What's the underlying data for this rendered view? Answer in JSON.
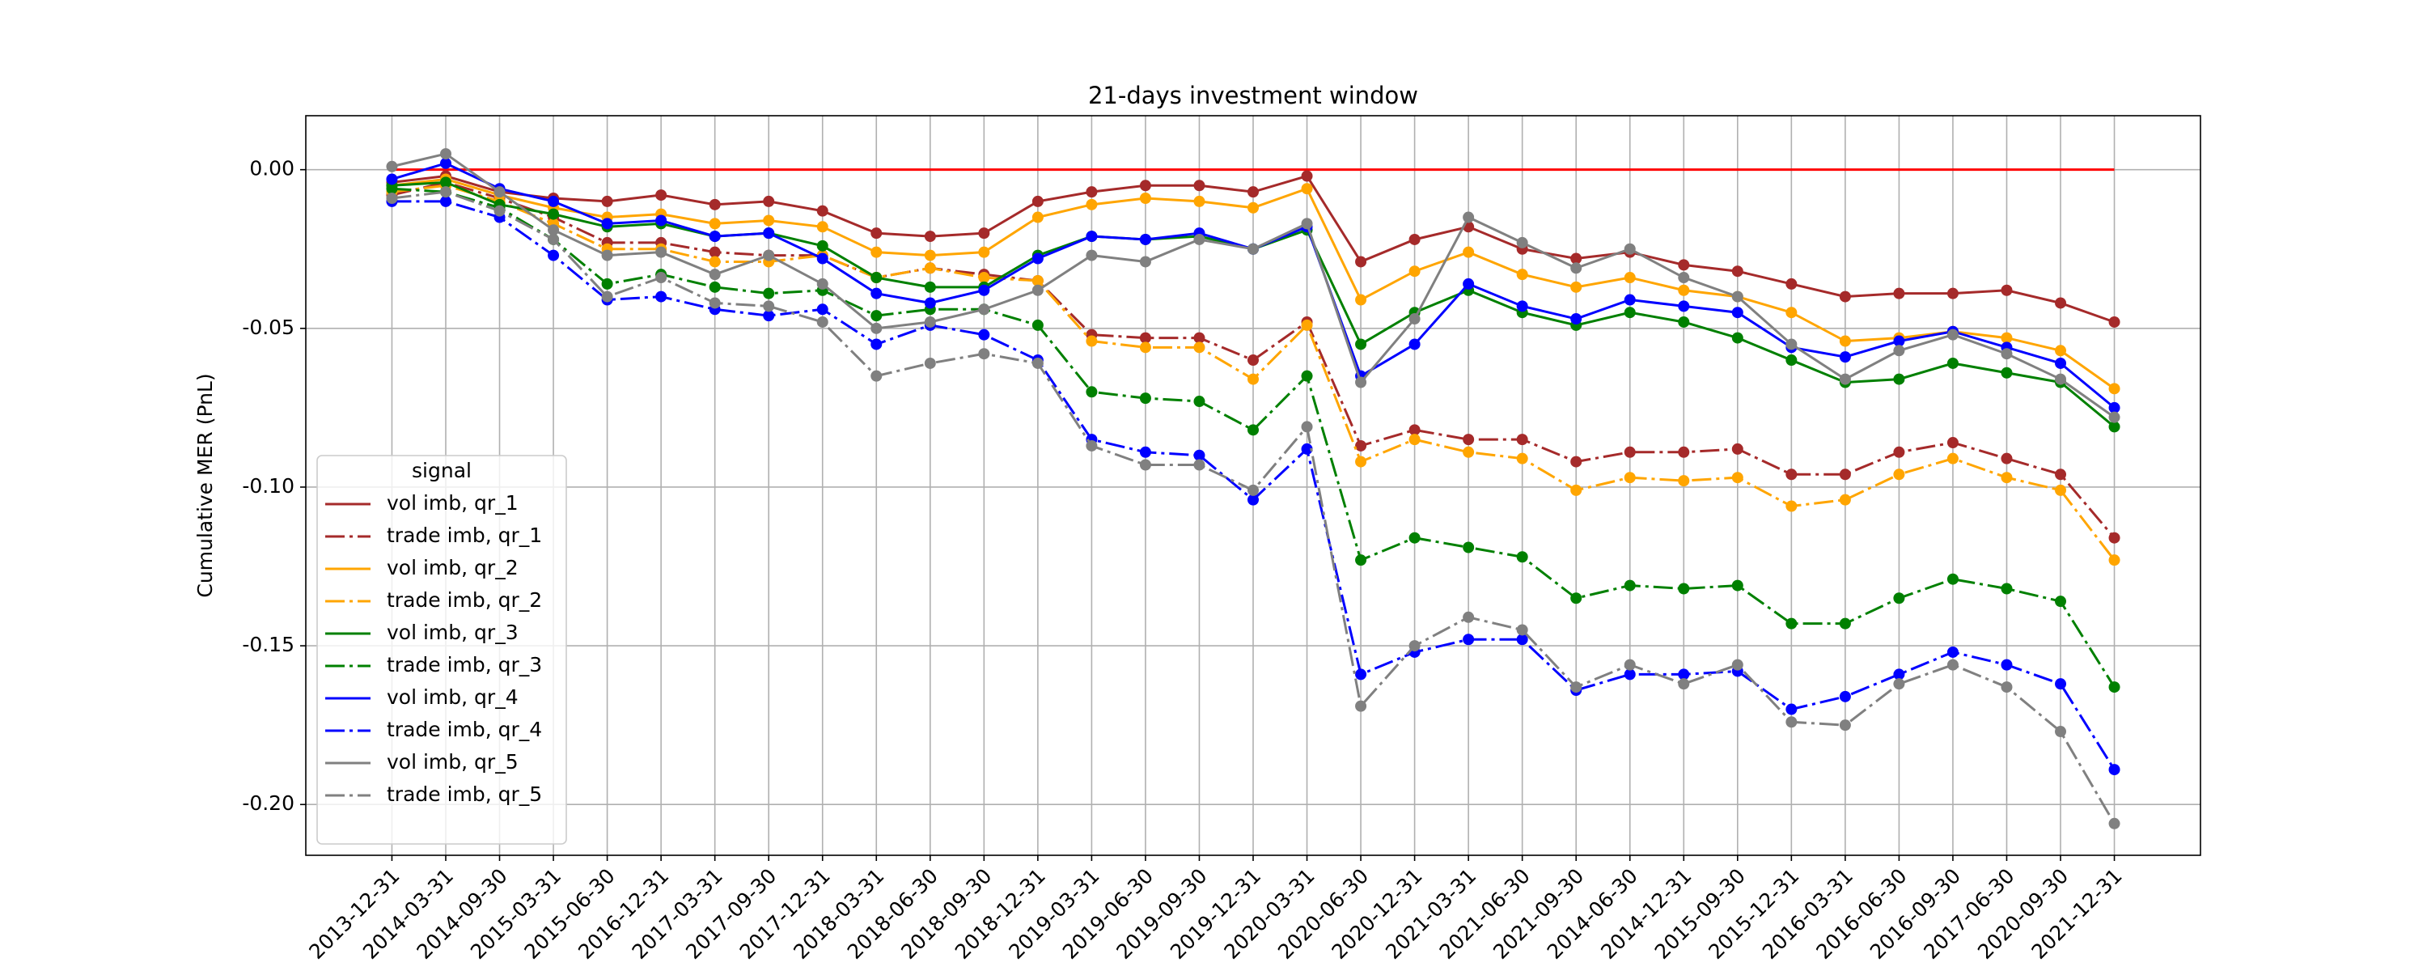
{
  "chart_data": {
    "type": "line",
    "title": "21-days investment window",
    "ylabel": "Cumulative MER (PnL)",
    "categories": [
      "2013-12-31",
      "2014-03-31",
      "2014-09-30",
      "2015-03-31",
      "2015-06-30",
      "2016-12-31",
      "2017-03-31",
      "2017-09-30",
      "2017-12-31",
      "2018-03-31",
      "2018-06-30",
      "2018-09-30",
      "2018-12-31",
      "2019-03-31",
      "2019-06-30",
      "2019-09-30",
      "2019-12-31",
      "2020-03-31",
      "2020-06-30",
      "2020-12-31",
      "2021-03-31",
      "2021-06-30",
      "2021-09-30",
      "2014-06-30",
      "2014-12-31",
      "2015-09-30",
      "2015-12-31",
      "2016-03-31",
      "2016-06-30",
      "2016-09-30",
      "2017-06-30",
      "2020-09-30",
      "2021-12-31"
    ],
    "ylim": [
      -0.216,
      0.017
    ],
    "yticks": [
      {
        "value": 0,
        "label": "0.00"
      },
      {
        "value": -0.05,
        "label": "-0.05"
      },
      {
        "value": -0.1,
        "label": "-0.10"
      },
      {
        "value": -0.15,
        "label": "-0.15"
      },
      {
        "value": -0.2,
        "label": "-0.20"
      }
    ],
    "grid": true,
    "hline": {
      "value": 0,
      "color": "#ff0000"
    },
    "legend_title": "signal",
    "legend_loc": "lower left",
    "series": [
      {
        "name": "vol imb, qr_1",
        "color": "#a52a2a",
        "linestyle": "solid",
        "values": [
          -0.004,
          -0.002,
          -0.007,
          -0.009,
          -0.01,
          -0.008,
          -0.011,
          -0.01,
          -0.013,
          -0.02,
          -0.021,
          -0.02,
          -0.01,
          -0.007,
          -0.005,
          -0.005,
          -0.007,
          -0.002,
          -0.029,
          -0.022,
          -0.018,
          -0.025,
          -0.028,
          -0.026,
          -0.03,
          -0.032,
          -0.036,
          -0.04,
          -0.039,
          -0.039,
          -0.038,
          -0.042,
          -0.048
        ]
      },
      {
        "name": "trade imb, qr_1",
        "color": "#a52a2a",
        "linestyle": "dashdot",
        "values": [
          -0.008,
          -0.004,
          -0.009,
          -0.015,
          -0.023,
          -0.023,
          -0.026,
          -0.027,
          -0.027,
          -0.034,
          -0.031,
          -0.033,
          -0.035,
          -0.052,
          -0.053,
          -0.053,
          -0.06,
          -0.048,
          -0.087,
          -0.082,
          -0.085,
          -0.085,
          -0.092,
          -0.089,
          -0.089,
          -0.088,
          -0.096,
          -0.096,
          -0.089,
          -0.086,
          -0.091,
          -0.096,
          -0.116
        ]
      },
      {
        "name": "vol imb, qr_2",
        "color": "#ffa500",
        "linestyle": "solid",
        "values": [
          -0.005,
          -0.003,
          -0.008,
          -0.012,
          -0.015,
          -0.014,
          -0.017,
          -0.016,
          -0.018,
          -0.026,
          -0.027,
          -0.026,
          -0.015,
          -0.011,
          -0.009,
          -0.01,
          -0.012,
          -0.006,
          -0.041,
          -0.032,
          -0.026,
          -0.033,
          -0.037,
          -0.034,
          -0.038,
          -0.04,
          -0.045,
          -0.054,
          -0.053,
          -0.051,
          -0.053,
          -0.057,
          -0.069
        ]
      },
      {
        "name": "trade imb, qr_2",
        "color": "#ffa500",
        "linestyle": "dashdot",
        "values": [
          -0.007,
          -0.005,
          -0.01,
          -0.017,
          -0.025,
          -0.025,
          -0.029,
          -0.029,
          -0.027,
          -0.034,
          -0.031,
          -0.034,
          -0.035,
          -0.054,
          -0.056,
          -0.056,
          -0.066,
          -0.049,
          -0.092,
          -0.085,
          -0.089,
          -0.091,
          -0.101,
          -0.097,
          -0.098,
          -0.097,
          -0.106,
          -0.104,
          -0.096,
          -0.091,
          -0.097,
          -0.101,
          -0.123
        ]
      },
      {
        "name": "vol imb, qr_3",
        "color": "#008000",
        "linestyle": "solid",
        "values": [
          -0.005,
          -0.004,
          -0.011,
          -0.014,
          -0.018,
          -0.017,
          -0.021,
          -0.02,
          -0.024,
          -0.034,
          -0.037,
          -0.037,
          -0.027,
          -0.021,
          -0.022,
          -0.021,
          -0.025,
          -0.019,
          -0.055,
          -0.045,
          -0.038,
          -0.045,
          -0.049,
          -0.045,
          -0.048,
          -0.053,
          -0.06,
          -0.067,
          -0.066,
          -0.061,
          -0.064,
          -0.067,
          -0.081
        ]
      },
      {
        "name": "trade imb, qr_3",
        "color": "#008000",
        "linestyle": "dashdot",
        "values": [
          -0.006,
          -0.007,
          -0.012,
          -0.022,
          -0.036,
          -0.033,
          -0.037,
          -0.039,
          -0.038,
          -0.046,
          -0.044,
          -0.044,
          -0.049,
          -0.07,
          -0.072,
          -0.073,
          -0.082,
          -0.065,
          -0.123,
          -0.116,
          -0.119,
          -0.122,
          -0.135,
          -0.131,
          -0.132,
          -0.131,
          -0.143,
          -0.143,
          -0.135,
          -0.129,
          -0.132,
          -0.136,
          -0.163
        ]
      },
      {
        "name": "vol imb, qr_4",
        "color": "#0000ff",
        "linestyle": "solid",
        "values": [
          -0.003,
          0.002,
          -0.006,
          -0.01,
          -0.017,
          -0.016,
          -0.021,
          -0.02,
          -0.028,
          -0.039,
          -0.042,
          -0.038,
          -0.028,
          -0.021,
          -0.022,
          -0.02,
          -0.025,
          -0.018,
          -0.065,
          -0.055,
          -0.036,
          -0.043,
          -0.047,
          -0.041,
          -0.043,
          -0.045,
          -0.056,
          -0.059,
          -0.054,
          -0.051,
          -0.056,
          -0.061,
          -0.075
        ]
      },
      {
        "name": "trade imb, qr_4",
        "color": "#0000ff",
        "linestyle": "dashdot",
        "values": [
          -0.01,
          -0.01,
          -0.015,
          -0.027,
          -0.041,
          -0.04,
          -0.044,
          -0.046,
          -0.044,
          -0.055,
          -0.049,
          -0.052,
          -0.06,
          -0.085,
          -0.089,
          -0.09,
          -0.104,
          -0.088,
          -0.159,
          -0.152,
          -0.148,
          -0.148,
          -0.164,
          -0.159,
          -0.159,
          -0.158,
          -0.17,
          -0.166,
          -0.159,
          -0.152,
          -0.156,
          -0.162,
          -0.189
        ]
      },
      {
        "name": "vol imb, qr_5",
        "color": "#808080",
        "linestyle": "solid",
        "values": [
          0.001,
          0.005,
          -0.007,
          -0.019,
          -0.027,
          -0.026,
          -0.033,
          -0.027,
          -0.036,
          -0.05,
          -0.048,
          -0.044,
          -0.038,
          -0.027,
          -0.029,
          -0.022,
          -0.025,
          -0.017,
          -0.067,
          -0.047,
          -0.015,
          -0.023,
          -0.031,
          -0.025,
          -0.034,
          -0.04,
          -0.055,
          -0.066,
          -0.057,
          -0.052,
          -0.058,
          -0.066,
          -0.078
        ]
      },
      {
        "name": "trade imb, qr_5",
        "color": "#808080",
        "linestyle": "dashdot",
        "values": [
          -0.009,
          -0.007,
          -0.013,
          -0.022,
          -0.04,
          -0.034,
          -0.042,
          -0.043,
          -0.048,
          -0.065,
          -0.061,
          -0.058,
          -0.061,
          -0.087,
          -0.093,
          -0.093,
          -0.101,
          -0.081,
          -0.169,
          -0.15,
          -0.141,
          -0.145,
          -0.163,
          -0.156,
          -0.162,
          -0.156,
          -0.174,
          -0.175,
          -0.162,
          -0.156,
          -0.163,
          -0.177,
          -0.206
        ]
      }
    ]
  }
}
